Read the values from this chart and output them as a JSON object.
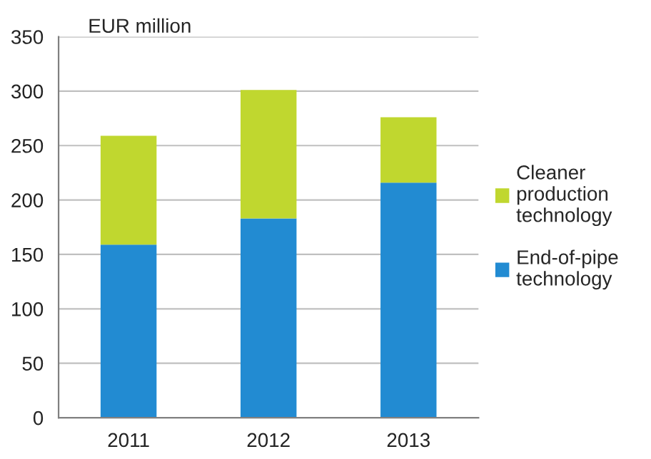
{
  "chart_data": {
    "type": "bar",
    "ylabel": "EUR million",
    "categories": [
      "2011",
      "2012",
      "2013"
    ],
    "stacked": true,
    "series": [
      {
        "name": "End-of-pipe technology",
        "color": "#228bd2",
        "values": [
          159,
          183,
          216
        ]
      },
      {
        "name": "Cleaner production technology",
        "color": "#c0d72f",
        "values": [
          100,
          118,
          60
        ]
      }
    ],
    "ylim": [
      0,
      350
    ],
    "yticks": [
      0,
      50,
      100,
      150,
      200,
      250,
      300,
      350
    ],
    "grid": "y",
    "legend": "right"
  }
}
